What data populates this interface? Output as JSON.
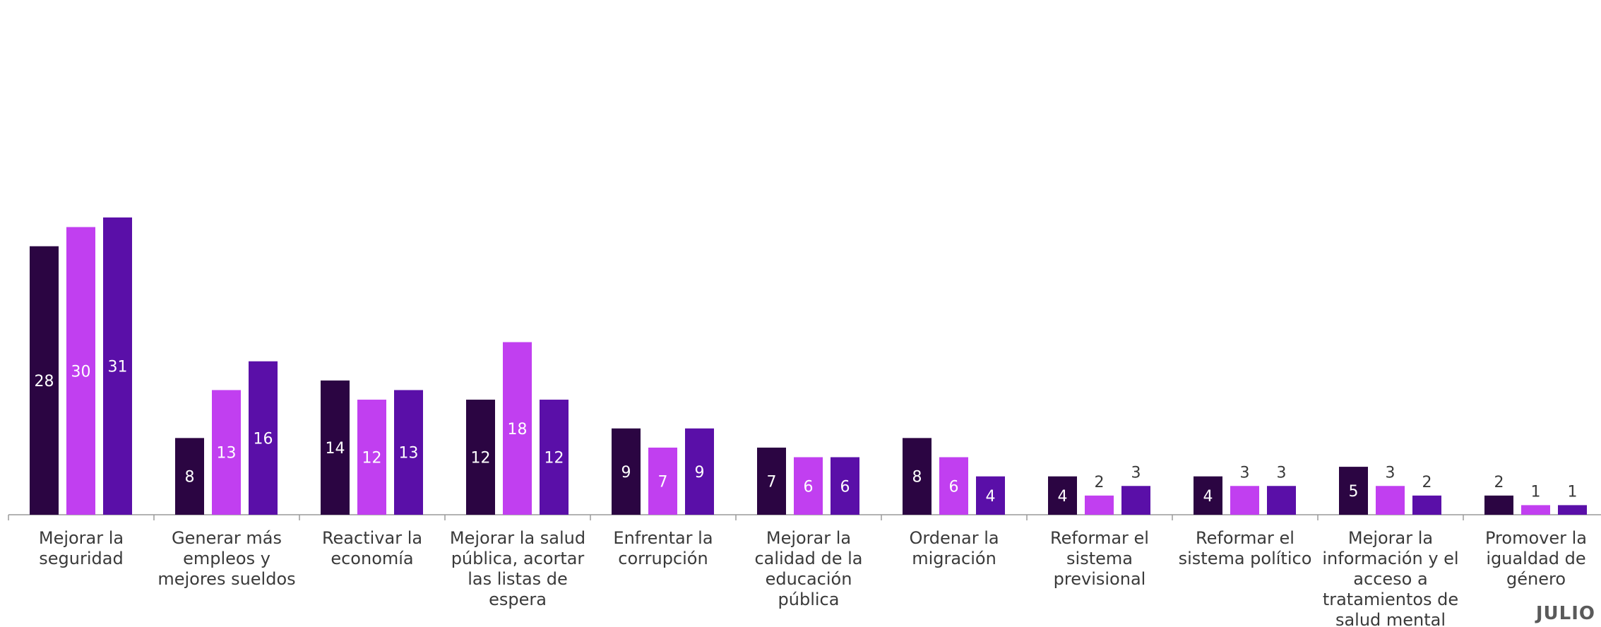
{
  "chart_data": {
    "type": "bar",
    "categories": [
      [
        "Mejorar la",
        "seguridad"
      ],
      [
        "Generar más",
        "empleos y",
        "mejores sueldos"
      ],
      [
        "Reactivar la",
        "economía"
      ],
      [
        "Mejorar la salud",
        "pública, acortar",
        "las listas de",
        "espera"
      ],
      [
        "Enfrentar la",
        "corrupción"
      ],
      [
        "Mejorar la",
        "calidad de la",
        "educación",
        "pública"
      ],
      [
        "Ordenar la",
        "migración"
      ],
      [
        "Reformar el",
        "sistema",
        "previsional"
      ],
      [
        "Reformar el",
        "sistema político"
      ],
      [
        "Mejorar la",
        "información y el",
        "acceso a",
        "tratamientos de",
        "salud mental"
      ],
      [
        "Promover la",
        "igualdad de",
        "género"
      ]
    ],
    "series": [
      {
        "color": "#2b0542",
        "values": [
          28,
          8,
          14,
          12,
          9,
          7,
          8,
          4,
          4,
          5,
          2
        ]
      },
      {
        "color": "#c13ff0",
        "values": [
          30,
          13,
          12,
          18,
          7,
          6,
          6,
          2,
          3,
          3,
          1
        ]
      },
      {
        "color": "#5a0fa8",
        "values": [
          31,
          16,
          13,
          12,
          9,
          6,
          4,
          3,
          3,
          2,
          1
        ]
      }
    ],
    "ylim": [
      0,
      31
    ]
  },
  "brand": "JULIO"
}
